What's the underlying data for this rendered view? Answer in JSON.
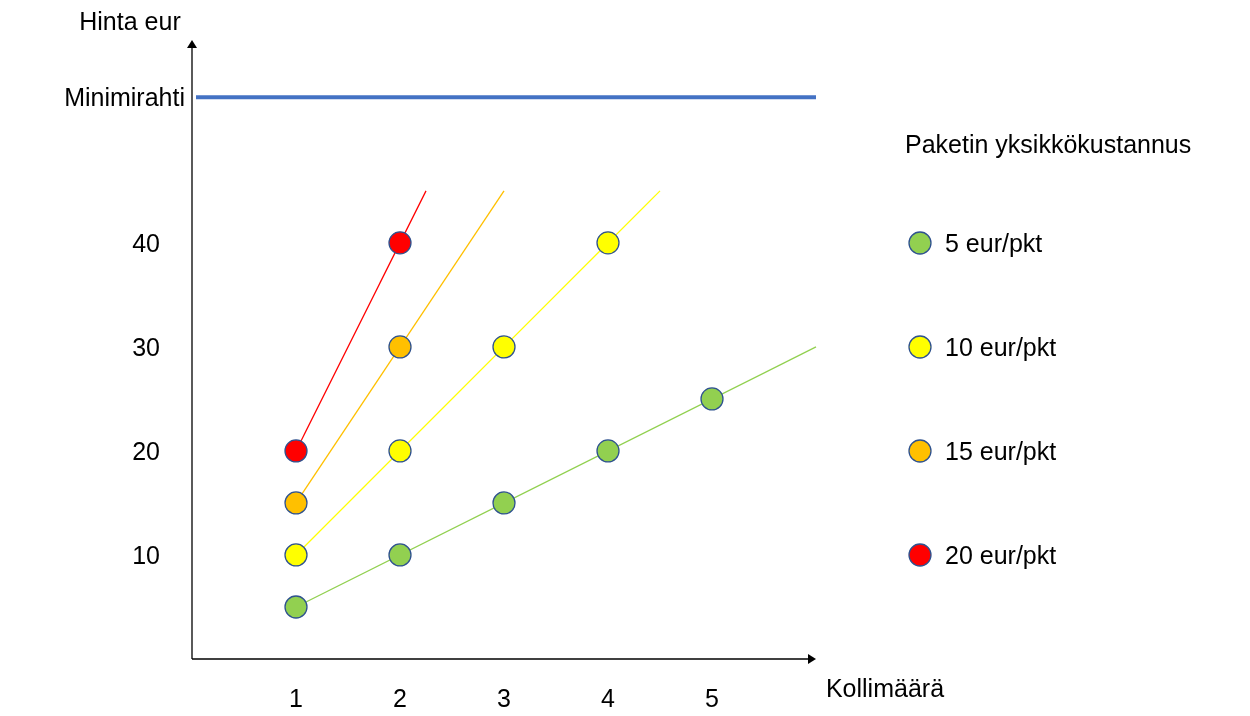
{
  "chart_data": {
    "type": "scatter",
    "xlabel": "Kollimäärä",
    "ylabel": "Hinta eur",
    "legend_title": "Paketin yksikkökustannus",
    "xlim": [
      0,
      6
    ],
    "ylim": [
      0,
      59.5
    ],
    "xticks": [
      1,
      2,
      3,
      4,
      5
    ],
    "yticks": [
      10,
      20,
      30,
      40
    ],
    "grid": false,
    "legend": "right",
    "marker": "circle",
    "ref_lines": [
      {
        "axis": "y",
        "value": 54,
        "label": "Minimirahti",
        "color": "#4472c4"
      }
    ],
    "series": [
      {
        "type": "line",
        "color": "#92d050",
        "x": [
          1,
          6
        ],
        "values": [
          5,
          30
        ],
        "marker": "none"
      },
      {
        "type": "line",
        "color": "#ffff00",
        "x": [
          1,
          4.5
        ],
        "values": [
          10,
          45
        ],
        "marker": "none"
      },
      {
        "type": "line",
        "color": "#ffc000",
        "x": [
          1,
          3
        ],
        "values": [
          15,
          45
        ],
        "marker": "none"
      },
      {
        "type": "line",
        "color": "#ff0000",
        "x": [
          1,
          2.25
        ],
        "values": [
          20,
          45
        ],
        "marker": "none"
      },
      {
        "name": "5 eur/pkt",
        "color": "#92d050",
        "x": [
          1,
          2,
          3,
          4,
          5
        ],
        "values": [
          5,
          10,
          15,
          20,
          25
        ]
      },
      {
        "name": "10 eur/pkt",
        "color": "#ffff00",
        "x": [
          1,
          2,
          3,
          4
        ],
        "values": [
          10,
          20,
          30,
          40
        ]
      },
      {
        "name": "15 eur/pkt",
        "color": "#ffc000",
        "x": [
          1,
          2
        ],
        "values": [
          15,
          30
        ]
      },
      {
        "name": "20 eur/pkt",
        "color": "#ff0000",
        "x": [
          1,
          2
        ],
        "values": [
          20,
          40
        ]
      }
    ]
  }
}
